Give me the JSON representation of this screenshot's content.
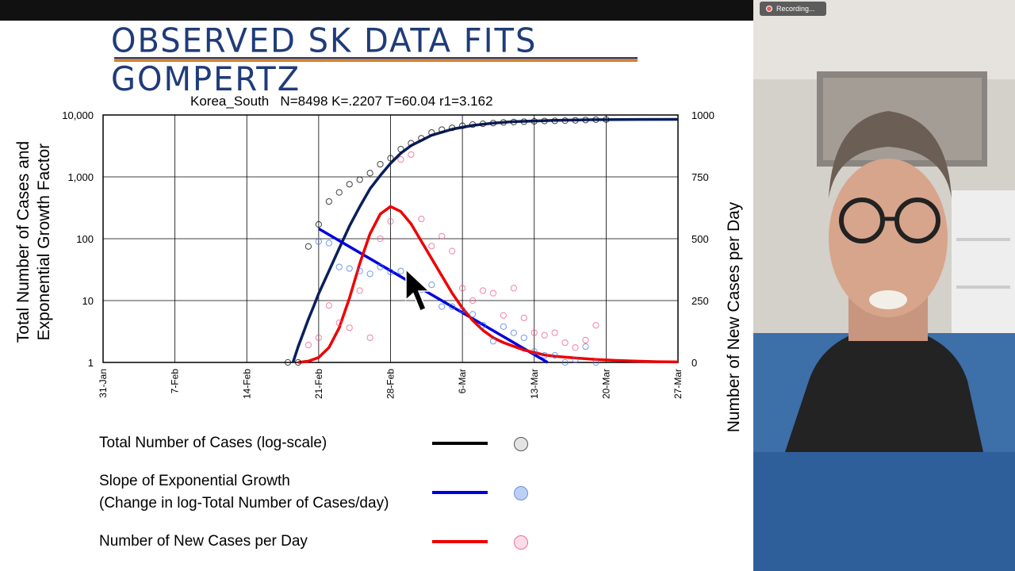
{
  "recording": {
    "label": "Recording..."
  },
  "slide": {
    "title": "OBSERVED SK DATA FITS GOMPERTZ",
    "legend": [
      {
        "label": "Total Number of Cases (log-scale)",
        "line_color": "#000000",
        "dot_color": "#d9d9d9"
      },
      {
        "label": "Slope of Exponential Growth",
        "label2": "(Change in log-Total Number of Cases/day)",
        "line_color": "#0000dd",
        "dot_color": "#bcd0f5"
      },
      {
        "label": "Number of New Cases per Day",
        "line_color": "#ee0000",
        "dot_color": "#fbd4e2"
      }
    ]
  },
  "chart_data": {
    "type": "line",
    "title": "Korea_South   N=8498 K=.2207 T=60.04 r1=3.162",
    "ylabel_left": [
      "Total Number of Cases  and",
      "Exponential Growth Factor"
    ],
    "ylabel_right": "Number of New Cases per Day",
    "x_ticks": [
      "31-Jan",
      "7-Feb",
      "14-Feb",
      "21-Feb",
      "28-Feb",
      "6-Mar",
      "13-Mar",
      "20-Mar",
      "27-Mar"
    ],
    "y_left_ticks": [
      "10,000",
      "1,000",
      "100",
      "10",
      "1"
    ],
    "y_left_scale": "log",
    "y_left_range": [
      1,
      10000
    ],
    "y_right_ticks": [
      "1000",
      "750",
      "500",
      "250",
      "0"
    ],
    "y_right_range": [
      0,
      1000
    ],
    "x_range_days": [
      0,
      56
    ],
    "grid": true,
    "series": [
      {
        "kind": "fit",
        "axis": "left",
        "color": "#0a1f5c",
        "x": [
          18.5,
          19,
          19.5,
          20,
          20.5,
          21,
          22,
          23,
          24,
          25,
          26,
          27,
          28,
          29,
          30,
          32,
          34,
          36,
          38,
          40,
          44,
          48,
          52,
          56
        ],
        "y": [
          1,
          1.8,
          3,
          5,
          8,
          13,
          30,
          70,
          160,
          330,
          640,
          1050,
          1650,
          2400,
          3200,
          4700,
          5900,
          6800,
          7400,
          7800,
          8200,
          8400,
          8470,
          8490
        ]
      },
      {
        "kind": "points",
        "axis": "left",
        "color": "#000000",
        "x": [
          18,
          19,
          20,
          21,
          22,
          23,
          24,
          25,
          26,
          27,
          28,
          29,
          30,
          31,
          32,
          33,
          34,
          35,
          36,
          37,
          38,
          39,
          40,
          41,
          42,
          43,
          44,
          45,
          46,
          47,
          48,
          49
        ],
        "y": [
          1,
          1,
          75,
          170,
          400,
          560,
          760,
          900,
          1150,
          1600,
          2000,
          2800,
          3500,
          4200,
          5200,
          5800,
          6200,
          6700,
          7000,
          7200,
          7400,
          7600,
          7700,
          7800,
          7900,
          8000,
          8050,
          8100,
          8200,
          8300,
          8400,
          8450
        ]
      },
      {
        "kind": "fit",
        "axis": "left",
        "color": "#0000dd",
        "x": [
          21,
          43.3
        ],
        "y": [
          145,
          1
        ]
      },
      {
        "kind": "points",
        "axis": "left",
        "color": "#4477ee",
        "x": [
          21,
          22,
          23,
          24,
          25,
          26,
          27,
          28,
          29,
          30,
          31,
          32,
          33,
          34,
          35,
          36,
          37,
          38,
          39,
          40,
          41,
          42,
          43,
          44,
          45,
          46,
          47,
          48
        ],
        "y": [
          90,
          85,
          35,
          33,
          30,
          27,
          35,
          29,
          30,
          17,
          15,
          18,
          8,
          8,
          7,
          6,
          4,
          2.2,
          3.8,
          3,
          2.5,
          1.5,
          1.3,
          1.3,
          1,
          1.1,
          1.8,
          1
        ]
      },
      {
        "kind": "fit",
        "axis": "right",
        "color": "#ee0000",
        "x": [
          19,
          20,
          21,
          22,
          23,
          24,
          25,
          26,
          27,
          28,
          29,
          30,
          31,
          32,
          33,
          34,
          35,
          36,
          37,
          38,
          39,
          40,
          41,
          42,
          43,
          44,
          46,
          48,
          50,
          52,
          54,
          56
        ],
        "y": [
          0,
          5,
          20,
          60,
          140,
          260,
          400,
          520,
          600,
          630,
          610,
          560,
          490,
          420,
          350,
          280,
          220,
          170,
          130,
          100,
          80,
          65,
          50,
          40,
          30,
          25,
          18,
          12,
          8,
          5,
          3,
          2
        ]
      },
      {
        "kind": "points",
        "axis": "right",
        "color": "#ee5588",
        "x": [
          20,
          21,
          22,
          23,
          24,
          25,
          26,
          27,
          28,
          29,
          30,
          31,
          32,
          33,
          34,
          35,
          36,
          37,
          38,
          39,
          40,
          41,
          42,
          43,
          44,
          45,
          46,
          47,
          48
        ],
        "y": [
          70,
          100,
          230,
          160,
          140,
          290,
          100,
          500,
          570,
          820,
          840,
          580,
          470,
          510,
          450,
          300,
          250,
          290,
          280,
          190,
          300,
          180,
          120,
          110,
          120,
          80,
          60,
          90,
          150
        ]
      }
    ]
  }
}
